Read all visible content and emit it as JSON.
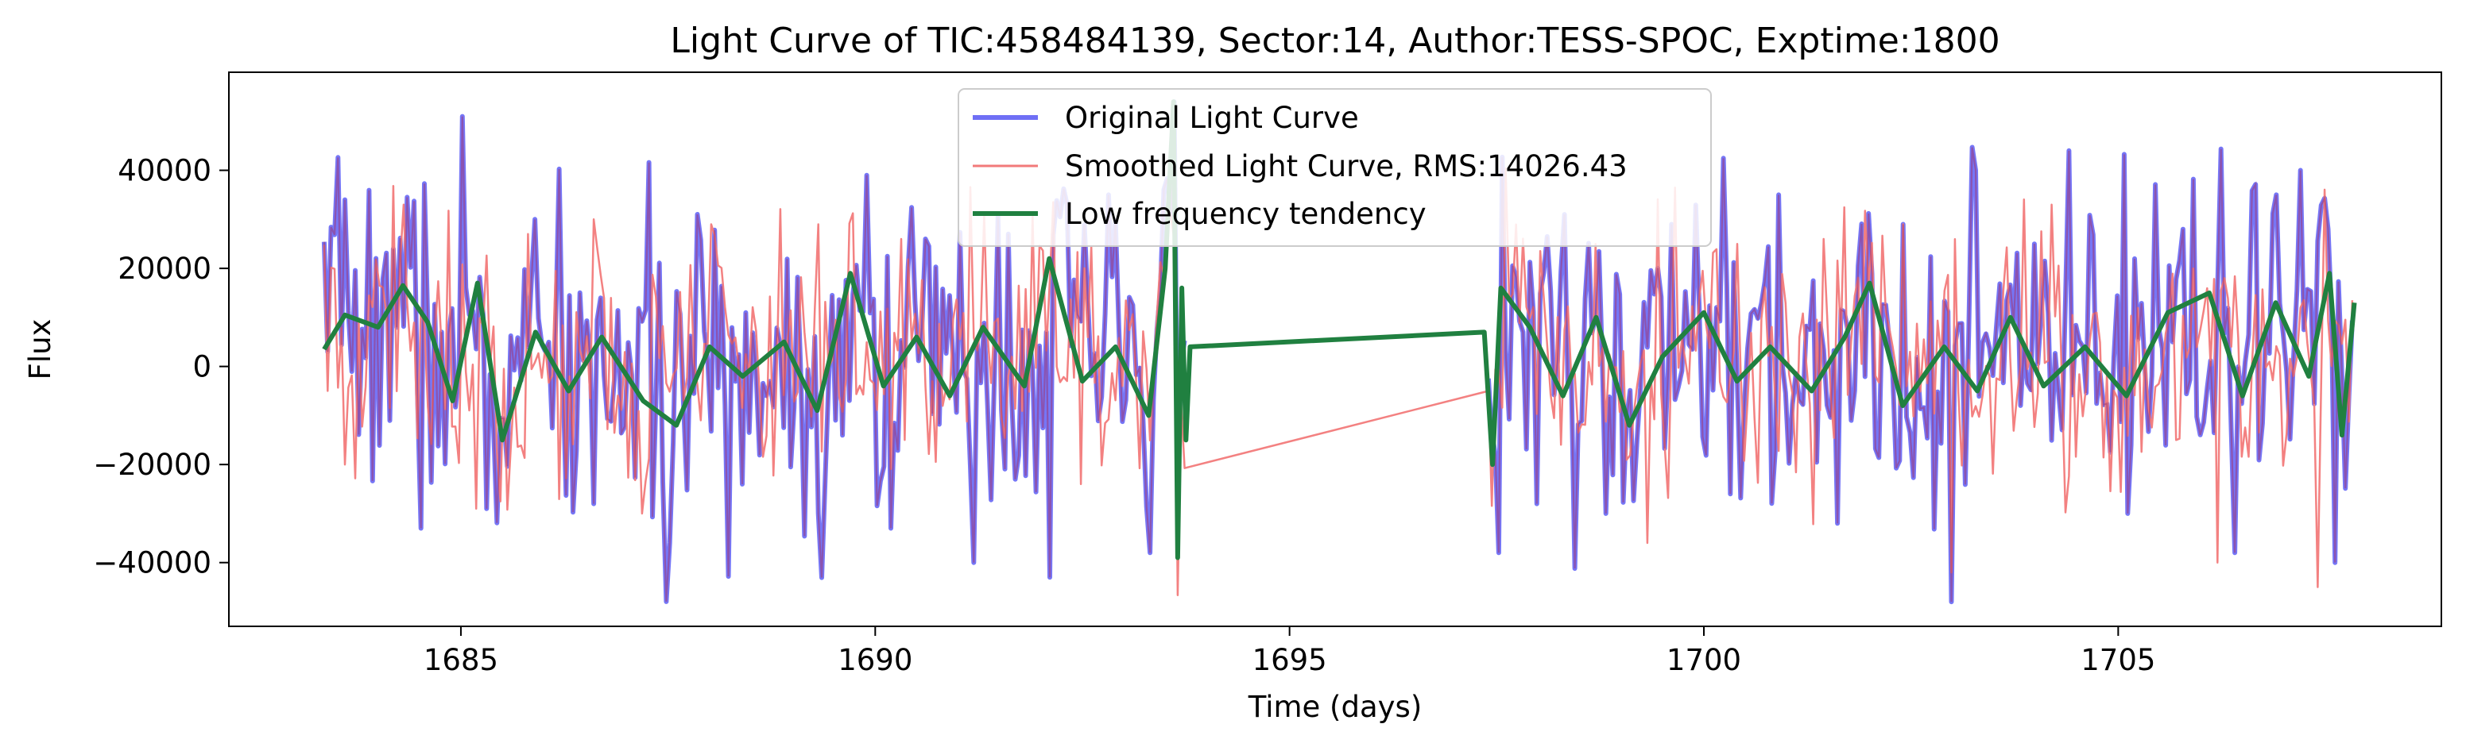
{
  "chart_data": {
    "type": "line",
    "title": "Light Curve of TIC:458484139, Sector:14, Author:TESS-SPOC, Exptime:1800",
    "xlabel": "Time (days)",
    "ylabel": "Flux",
    "xlim": [
      1682.2,
      1708.9
    ],
    "ylim": [
      -53000,
      60000
    ],
    "xticks": [
      1685,
      1690,
      1695,
      1700,
      1705
    ],
    "xtick_labels": [
      "1685",
      "1690",
      "1695",
      "1700",
      "1705"
    ],
    "yticks": [
      -40000,
      -20000,
      0,
      20000,
      40000
    ],
    "ytick_labels": [
      "−40000",
      "−20000",
      "0",
      "20000",
      "40000"
    ],
    "legend_placement": "upper center",
    "grid": false,
    "segments": [
      {
        "x_start": 1683.35,
        "x_end": 1693.75
      },
      {
        "x_start": 1697.4,
        "x_end": 1707.85
      }
    ],
    "series": [
      {
        "name": "Original Light Curve",
        "color": "#6f6ff5",
        "style": "thick noisy line",
        "points": [
          [
            1683.4,
            3000
          ],
          [
            1683.6,
            34000
          ],
          [
            1684.2,
            24000
          ],
          [
            1684.5,
            -33000
          ],
          [
            1685.0,
            51000
          ],
          [
            1685.3,
            -29000
          ],
          [
            1685.9,
            30000
          ],
          [
            1686.6,
            -28000
          ],
          [
            1687.5,
            -36000
          ],
          [
            1688.4,
            -24000
          ],
          [
            1689.3,
            -30000
          ],
          [
            1689.9,
            39000
          ],
          [
            1690.2,
            -33000
          ],
          [
            1690.6,
            26000
          ],
          [
            1691.2,
            -40000
          ],
          [
            1691.6,
            27000
          ],
          [
            1692.1,
            -43000
          ],
          [
            1692.8,
            35000
          ],
          [
            1693.3,
            -38000
          ],
          [
            1693.6,
            54000
          ],
          [
            1698.0,
            -28000
          ],
          [
            1698.3,
            31000
          ],
          [
            1698.8,
            -30000
          ],
          [
            1699.6,
            29000
          ],
          [
            1700.3,
            -26000
          ],
          [
            1700.9,
            35000
          ],
          [
            1701.6,
            -32000
          ],
          [
            1702.4,
            29000
          ],
          [
            1703.0,
            -48000
          ],
          [
            1703.3,
            40000
          ],
          [
            1704.4,
            44000
          ],
          [
            1705.1,
            -30000
          ],
          [
            1705.8,
            28000
          ],
          [
            1706.4,
            -38000
          ],
          [
            1706.9,
            35000
          ],
          [
            1707.2,
            40000
          ],
          [
            1707.6,
            -40000
          ],
          [
            1707.85,
            -4000
          ]
        ]
      },
      {
        "name": "Smoothed Light Curve, RMS:14026.43",
        "color": "#f27a7a",
        "style": "thin noisy line",
        "rms": 14026.43,
        "points": [
          [
            1683.4,
            -5000
          ],
          [
            1683.6,
            -20000
          ],
          [
            1684.3,
            33000
          ],
          [
            1685.2,
            -29000
          ],
          [
            1685.8,
            27000
          ],
          [
            1686.6,
            30000
          ],
          [
            1687.2,
            -30000
          ],
          [
            1688.0,
            29000
          ],
          [
            1689.3,
            29000
          ],
          [
            1690.3,
            26000
          ],
          [
            1691.3,
            31000
          ],
          [
            1692.5,
            -24000
          ],
          [
            1693.7,
            -7500
          ],
          [
            1697.4,
            -5000
          ],
          [
            1698.7,
            25000
          ],
          [
            1700.4,
            25000
          ],
          [
            1702.4,
            29000
          ],
          [
            1703.0,
            -42000
          ],
          [
            1704.2,
            33000
          ],
          [
            1706.2,
            -40000
          ],
          [
            1707.4,
            -45000
          ],
          [
            1707.85,
            -3000
          ]
        ]
      },
      {
        "name": "Low frequency tendency",
        "color": "#208040",
        "style": "smooth thick line",
        "points": [
          [
            1683.35,
            3500
          ],
          [
            1683.6,
            10500
          ],
          [
            1684.0,
            8000
          ],
          [
            1684.3,
            16500
          ],
          [
            1684.6,
            9000
          ],
          [
            1684.9,
            -7000
          ],
          [
            1685.2,
            17000
          ],
          [
            1685.5,
            -15000
          ],
          [
            1685.9,
            7000
          ],
          [
            1686.3,
            -5000
          ],
          [
            1686.7,
            6000
          ],
          [
            1687.2,
            -7000
          ],
          [
            1687.6,
            -12000
          ],
          [
            1688.0,
            4000
          ],
          [
            1688.4,
            -2000
          ],
          [
            1688.9,
            5000
          ],
          [
            1689.3,
            -9000
          ],
          [
            1689.7,
            19000
          ],
          [
            1690.1,
            -4000
          ],
          [
            1690.5,
            6000
          ],
          [
            1690.9,
            -6000
          ],
          [
            1691.3,
            8000
          ],
          [
            1691.8,
            -4000
          ],
          [
            1692.1,
            22000
          ],
          [
            1692.5,
            -3000
          ],
          [
            1692.9,
            4000
          ],
          [
            1693.3,
            -10000
          ],
          [
            1693.5,
            20000
          ],
          [
            1693.6,
            54000
          ],
          [
            1693.65,
            -39000
          ],
          [
            1693.7,
            16000
          ],
          [
            1693.75,
            -15000
          ],
          [
            1693.8,
            4000
          ],
          [
            1697.35,
            7000
          ],
          [
            1697.45,
            -20000
          ],
          [
            1697.55,
            16000
          ],
          [
            1697.9,
            8000
          ],
          [
            1698.3,
            -6000
          ],
          [
            1698.7,
            10000
          ],
          [
            1699.1,
            -12000
          ],
          [
            1699.5,
            2000
          ],
          [
            1700.0,
            11000
          ],
          [
            1700.4,
            -3000
          ],
          [
            1700.8,
            4000
          ],
          [
            1701.3,
            -5000
          ],
          [
            1701.7,
            6000
          ],
          [
            1702.0,
            17000
          ],
          [
            1702.4,
            -8000
          ],
          [
            1702.9,
            4000
          ],
          [
            1703.3,
            -5000
          ],
          [
            1703.7,
            10000
          ],
          [
            1704.1,
            -4000
          ],
          [
            1704.6,
            4000
          ],
          [
            1705.1,
            -6000
          ],
          [
            1705.6,
            11000
          ],
          [
            1706.1,
            15000
          ],
          [
            1706.5,
            -6000
          ],
          [
            1706.9,
            13000
          ],
          [
            1707.3,
            -2000
          ],
          [
            1707.55,
            19000
          ],
          [
            1707.7,
            -14000
          ],
          [
            1707.85,
            13000
          ]
        ]
      }
    ]
  }
}
